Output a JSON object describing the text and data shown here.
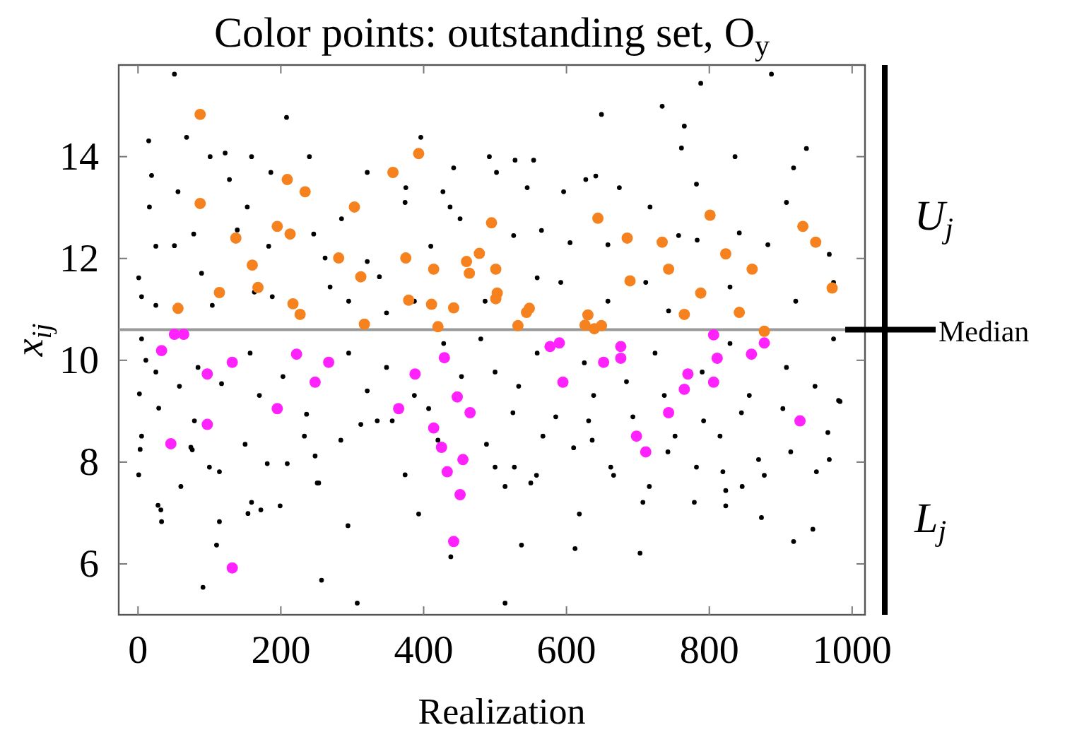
{
  "chart_data": {
    "type": "scatter",
    "title": "Color points: outstanding set, O$_{y}$",
    "xlabel": "Realization",
    "ylabel": "x$_{ij}$",
    "xlim": [
      -27,
      1018
    ],
    "xticks": [
      0,
      200,
      400,
      600,
      800,
      1000
    ],
    "ylim": [
      5,
      15.8
    ],
    "yticks": [
      6,
      8,
      10,
      12,
      14
    ],
    "grid": false,
    "marker": "circle",
    "ref_lines": [
      {
        "axis": "y",
        "value": 10.6,
        "label": "Median",
        "color": "#999999"
      }
    ],
    "annotations": [
      "U$_{j}$",
      "L$_{j}$"
    ],
    "series": [
      {
        "color": "#000000",
        "x": [
          51,
          208,
          15,
          68,
          122,
          101,
          159,
          240,
          396,
          19,
          56,
          128,
          186,
          16,
          321,
          375,
          427,
          442,
          788,
          887,
          649,
          734,
          765,
          761,
          492,
          528,
          554,
          936,
          836,
          918,
          641,
          627,
          596,
          674,
          782,
          545,
          502,
          91,
          307,
          257,
          110,
          114,
          33,
          28,
          32,
          1,
          60,
          100,
          114,
          159,
          154,
          172,
          199,
          181,
          209,
          253,
          294,
          374,
          393,
          438,
          3,
          5,
          74,
          76,
          29,
          2,
          79,
          150,
          233,
          284,
          248,
          251,
          312,
          335,
          356,
          407,
          420,
          514,
          537,
          612,
          618,
          703,
          707,
          779,
          823,
          873,
          918,
          945,
          514,
          550,
          558,
          666,
          716,
          823,
          846,
          877,
          500,
          527,
          662,
          782,
          819,
          869,
          950,
          968,
          488,
          567,
          610,
          636,
          742,
          815,
          914,
          966,
          983,
          903,
          845,
          792,
          752,
          693,
          631,
          585,
          525,
          1,
          25,
          51,
          89,
          78,
          139,
          153,
          183,
          188,
          246,
          262,
          285,
          321,
          338,
          374,
          410,
          437,
          451,
          5,
          25,
          104,
          163,
          269,
          295,
          348,
          387,
          526,
          565,
          605,
          658,
          717,
          757,
          783,
          842,
          882,
          908,
          968,
          974,
          592,
          711,
          829,
          921,
          486,
          559,
          658,
          743,
          5,
          11,
          25,
          58,
          84,
          117,
          157,
          170,
          203,
          236,
          295,
          321,
          348,
          387,
          428,
          453,
          480,
          500,
          533,
          559,
          625,
          638,
          684,
          724,
          737,
          790,
          829,
          856,
          908,
          948,
          974,
          981
        ],
        "values": [
          15.62,
          14.77,
          14.31,
          14.38,
          14.07,
          14.0,
          14.0,
          14.0,
          14.38,
          13.63,
          13.31,
          13.55,
          13.69,
          13.01,
          13.69,
          13.39,
          13.31,
          13.78,
          15.44,
          15.62,
          14.83,
          14.99,
          14.6,
          14.17,
          14.0,
          13.93,
          13.93,
          14.16,
          14.0,
          13.78,
          13.62,
          13.55,
          13.31,
          13.39,
          13.46,
          13.39,
          13.69,
          5.54,
          5.23,
          5.68,
          6.37,
          6.83,
          6.83,
          7.15,
          7.06,
          7.75,
          7.52,
          7.9,
          7.81,
          7.21,
          6.99,
          7.06,
          7.14,
          7.97,
          7.97,
          7.59,
          6.75,
          7.75,
          6.98,
          6.14,
          8.25,
          8.51,
          8.29,
          8.24,
          9.06,
          9.34,
          8.81,
          8.35,
          8.51,
          8.43,
          8.12,
          7.59,
          8.74,
          8.81,
          8.81,
          9.05,
          8.43,
          5.23,
          6.37,
          6.3,
          6.98,
          6.21,
          7.21,
          7.21,
          7.14,
          6.91,
          6.44,
          6.68,
          7.52,
          7.59,
          7.74,
          7.74,
          7.52,
          7.44,
          7.52,
          7.74,
          7.9,
          7.9,
          7.9,
          7.9,
          7.81,
          8.05,
          7.81,
          8.05,
          8.35,
          8.51,
          8.28,
          8.43,
          8.2,
          8.51,
          8.2,
          8.58,
          9.19,
          9.05,
          8.97,
          8.81,
          8.51,
          8.89,
          8.81,
          8.89,
          8.97,
          11.62,
          12.24,
          12.25,
          11.71,
          12.48,
          12.56,
          13.01,
          12.24,
          11.25,
          12.48,
          12.01,
          12.78,
          11.94,
          11.64,
          13.1,
          12.24,
          13.01,
          12.78,
          11.25,
          11.08,
          11.08,
          11.34,
          11.44,
          11.16,
          10.93,
          11.16,
          12.45,
          12.55,
          12.31,
          12.27,
          13.01,
          12.45,
          12.36,
          12.5,
          12.27,
          13.1,
          12.08,
          11.53,
          11.53,
          11.53,
          11.44,
          11.16,
          11.16,
          11.62,
          11.16,
          10.97,
          10.42,
          10.0,
          9.77,
          9.49,
          9.86,
          9.54,
          10.14,
          9.31,
          9.68,
          8.94,
          10.14,
          9.4,
          9.86,
          9.31,
          10.33,
          9.68,
          10.42,
          9.77,
          9.49,
          10.14,
          9.95,
          9.31,
          9.58,
          10.14,
          9.31,
          9.77,
          10.33,
          9.31,
          9.86,
          9.49,
          10.42,
          9.21
        ]
      },
      {
        "color": "#f5821f",
        "x": [
          87,
          87,
          209,
          234,
          195,
          213,
          137,
          160,
          168,
          114,
          56,
          217,
          227,
          281,
          303,
          312,
          317,
          357,
          393,
          375,
          379,
          414,
          411,
          420,
          442,
          460,
          464,
          495,
          478,
          501,
          503,
          501,
          548,
          544,
          532,
          644,
          685,
          689,
          734,
          743,
          630,
          626,
          639,
          649,
          765,
          788,
          801,
          823,
          842,
          860,
          877,
          931,
          949,
          972
        ],
        "values": [
          14.83,
          13.08,
          13.55,
          13.31,
          12.63,
          12.48,
          12.4,
          11.87,
          11.43,
          11.33,
          11.02,
          11.11,
          10.9,
          12.01,
          13.01,
          11.64,
          10.71,
          13.69,
          14.06,
          12.01,
          11.18,
          11.79,
          11.1,
          10.66,
          11.03,
          11.94,
          11.71,
          12.7,
          12.1,
          11.79,
          11.32,
          11.21,
          11.02,
          10.94,
          10.68,
          12.79,
          12.4,
          11.56,
          12.32,
          11.79,
          10.89,
          10.69,
          10.62,
          10.68,
          10.9,
          11.32,
          12.85,
          12.09,
          10.94,
          11.79,
          10.57,
          12.63,
          12.32,
          11.42
        ]
      },
      {
        "color": "#ff22ff",
        "x": [
          33,
          51,
          64,
          46,
          97,
          97,
          132,
          132,
          195,
          222,
          248,
          267,
          365,
          388,
          429,
          414,
          425,
          433,
          447,
          455,
          451,
          442,
          465,
          577,
          590,
          652,
          676,
          676,
          595,
          698,
          711,
          743,
          770,
          765,
          806,
          811,
          806,
          859,
          877,
          927
        ],
        "values": [
          10.19,
          10.51,
          10.51,
          8.36,
          9.73,
          8.74,
          9.96,
          5.92,
          9.05,
          10.12,
          9.57,
          9.96,
          9.05,
          9.73,
          10.05,
          8.67,
          8.29,
          7.81,
          9.28,
          8.05,
          7.36,
          6.44,
          8.97,
          10.27,
          10.34,
          9.96,
          10.27,
          10.04,
          9.57,
          8.51,
          8.2,
          8.97,
          9.73,
          9.43,
          10.5,
          10.04,
          9.57,
          10.12,
          10.34,
          8.81
        ]
      }
    ]
  }
}
